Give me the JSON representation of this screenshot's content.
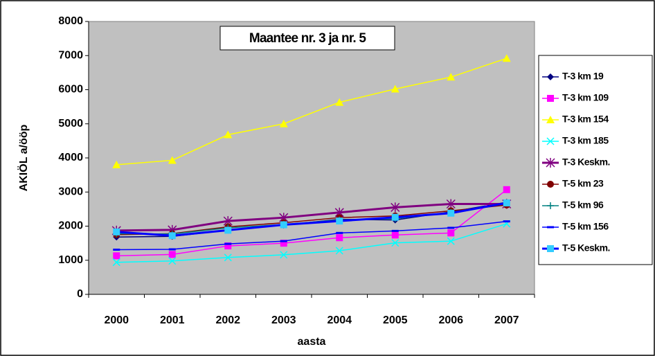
{
  "chart_data": {
    "type": "line",
    "title": "Maantee nr. 3 ja nr. 5",
    "x_label": "aasta",
    "y_label": "AKIÖL a/ööp",
    "categories": [
      "2000",
      "2001",
      "2002",
      "2003",
      "2004",
      "2005",
      "2006",
      "2007"
    ],
    "ylim": [
      0,
      8000
    ],
    "yticks": [
      0,
      1000,
      2000,
      3000,
      4000,
      5000,
      6000,
      7000,
      8000
    ],
    "series": [
      {
        "name": "T-3 km 19",
        "color": "#000080",
        "marker": "diamond",
        "values": [
          1680,
          1700,
          1880,
          2030,
          2200,
          2180,
          2420,
          2700
        ]
      },
      {
        "name": "T-3 km 109",
        "color": "#ff00ff",
        "marker": "square",
        "values": [
          1130,
          1170,
          1420,
          1500,
          1660,
          1740,
          1800,
          3070
        ]
      },
      {
        "name": "T-3 km 154",
        "color": "#ffff00",
        "marker": "triangle",
        "values": [
          3800,
          3930,
          4680,
          5000,
          5630,
          6020,
          6370,
          6920
        ]
      },
      {
        "name": "T-3 km 185",
        "color": "#00ffff",
        "marker": "x",
        "values": [
          940,
          980,
          1080,
          1160,
          1280,
          1510,
          1560,
          2070
        ]
      },
      {
        "name": "T-3 Keskm.",
        "color": "#800080",
        "marker": "star",
        "line_width": 3,
        "values": [
          1870,
          1890,
          2150,
          2250,
          2400,
          2550,
          2650,
          2650
        ]
      },
      {
        "name": "T-5 km 23",
        "color": "#800000",
        "marker": "circle",
        "values": [
          1750,
          1780,
          1980,
          2100,
          2250,
          2300,
          2450,
          2620
        ]
      },
      {
        "name": "T-5 km 96",
        "color": "#008080",
        "marker": "plus",
        "values": [
          1780,
          1770,
          1950,
          2050,
          2180,
          2220,
          2400,
          2680
        ]
      },
      {
        "name": "T-5 km 156",
        "color": "#0000ff",
        "marker": "dash",
        "values": [
          1310,
          1320,
          1480,
          1560,
          1800,
          1860,
          1950,
          2140
        ]
      },
      {
        "name": "T-5 Keskm.",
        "color": "#0000ff",
        "marker": "square",
        "marker_color": "#33ccff",
        "line_width": 3,
        "values": [
          1830,
          1720,
          1880,
          2040,
          2150,
          2260,
          2380,
          2680
        ]
      }
    ]
  }
}
